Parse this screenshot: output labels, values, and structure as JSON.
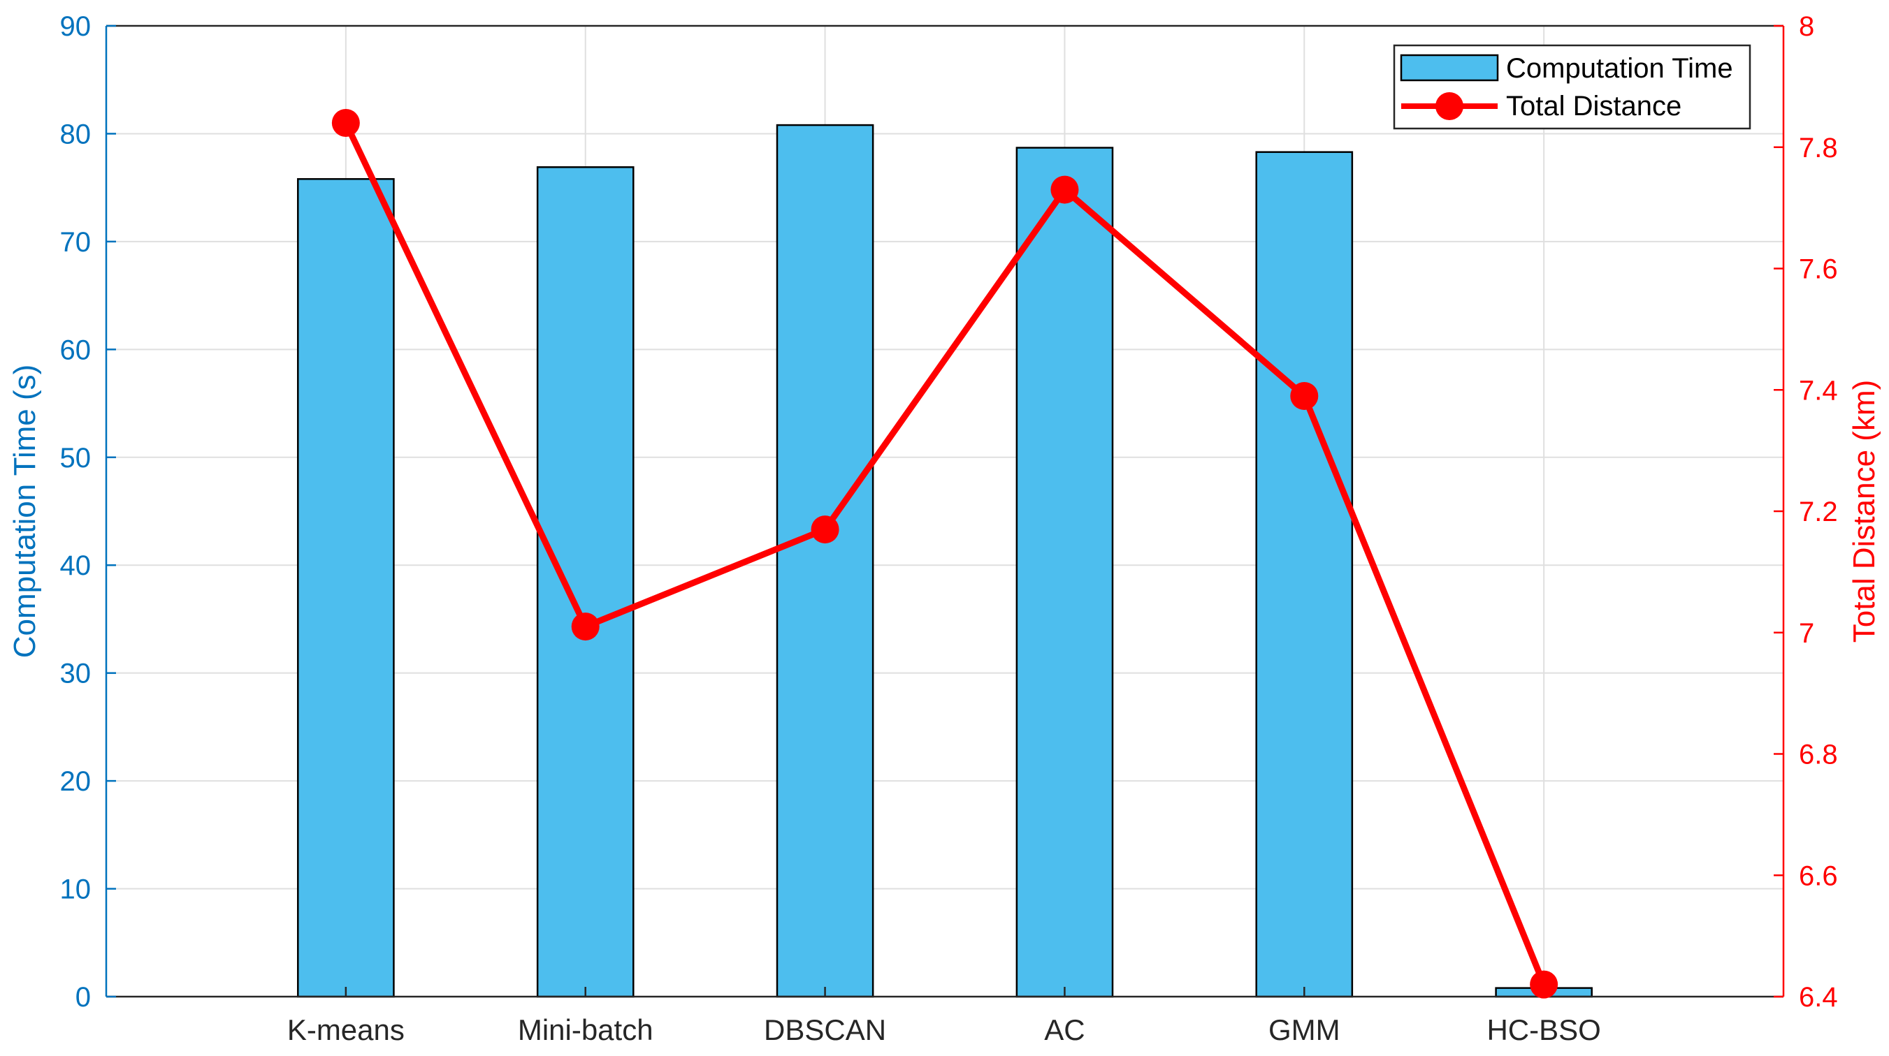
{
  "chart_data": {
    "type": "bar",
    "categories": [
      "K-means",
      "Mini-batch",
      "DBSCAN",
      "AC",
      "GMM",
      "HC-BSO"
    ],
    "series": [
      {
        "name": "Computation Time",
        "type": "bar",
        "axis": "left",
        "values": [
          75.8,
          76.9,
          80.8,
          78.7,
          78.3,
          0.8
        ],
        "color": "#4dbeee"
      },
      {
        "name": "Total Distance",
        "type": "line",
        "axis": "right",
        "values": [
          7.84,
          7.01,
          7.17,
          7.73,
          7.39,
          6.42
        ],
        "color": "#ff0000"
      }
    ],
    "y_left": {
      "label": "Computation Time (s)",
      "lim": [
        0,
        90
      ],
      "ticks": [
        "0",
        "10",
        "20",
        "30",
        "40",
        "50",
        "60",
        "70",
        "80",
        "90"
      ],
      "color": "#0072bd"
    },
    "y_right": {
      "label": "Total Distance (km)",
      "lim": [
        6.4,
        8
      ],
      "ticks": [
        "6.4",
        "6.6",
        "6.8",
        "7",
        "7.2",
        "7.4",
        "7.6",
        "7.8",
        "8"
      ],
      "color": "#ff0000"
    },
    "xlabel": "",
    "title": "",
    "grid": true,
    "legend_position": "top-right"
  }
}
